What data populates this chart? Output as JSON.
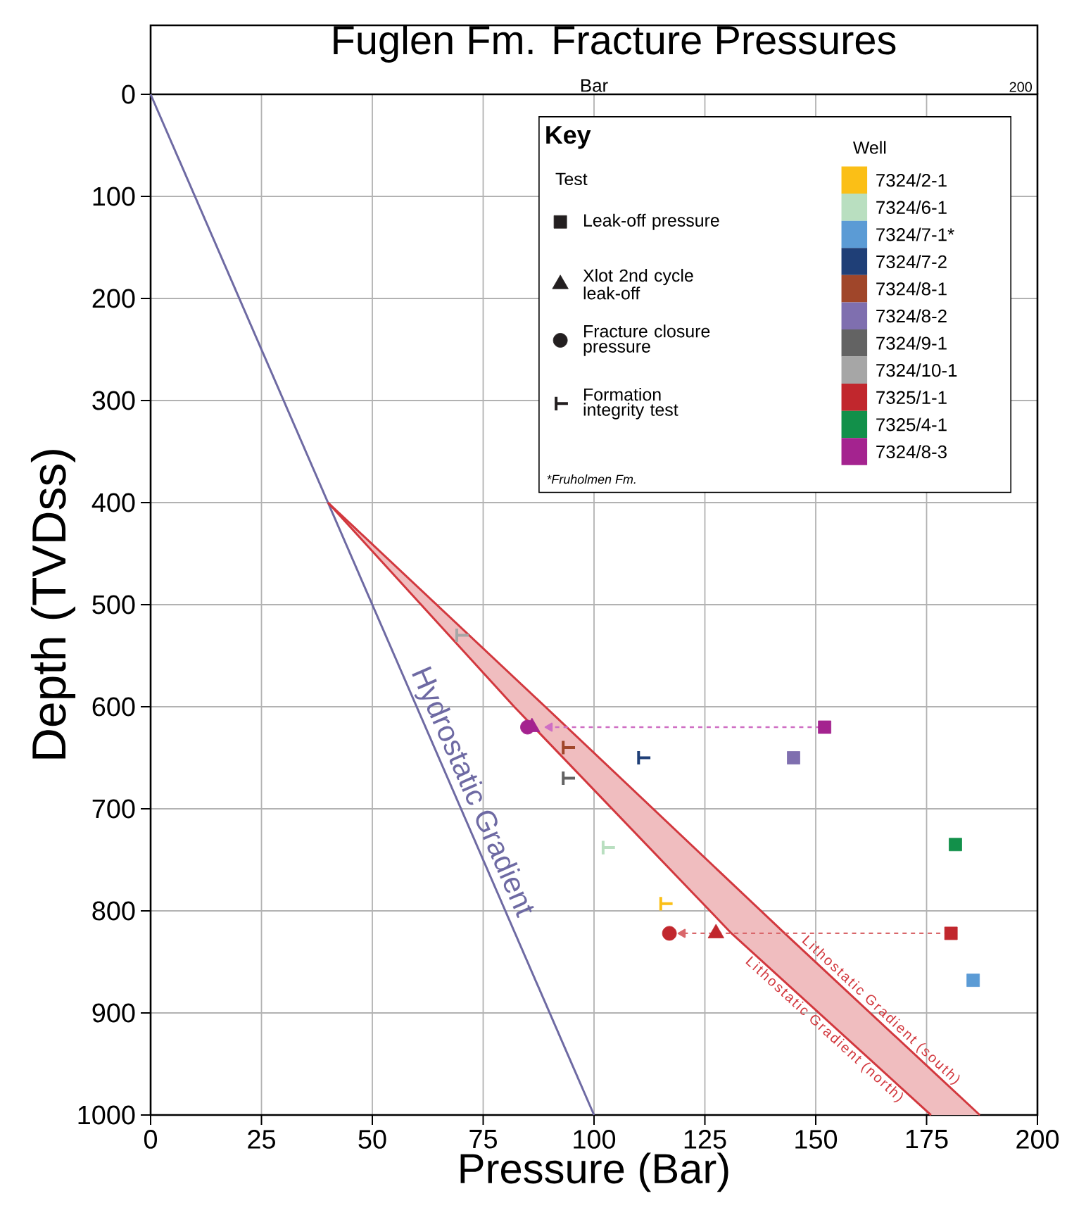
{
  "chart_data": {
    "type": "scatter",
    "title": "Fuglen Fm. Fracture Pressures",
    "xlabel": "Pressure (Bar)",
    "ylabel": "Depth (TVDss)",
    "legend_title": "Key",
    "annotations": [
      "Test",
      "Well",
      "*Fruholmen Fm.",
      "Bar",
      "200"
    ],
    "xlim": [
      0,
      200
    ],
    "xticks": [
      0,
      25,
      50,
      75,
      100,
      125,
      150,
      175,
      200
    ],
    "ylim": [
      1000,
      0
    ],
    "yticks": [
      0,
      100,
      200,
      300,
      400,
      500,
      600,
      700,
      800,
      900,
      1000
    ],
    "grid": true,
    "legend": "top right",
    "series": [
      {
        "type": "line",
        "name": "Hydrostatic Gradient",
        "color": "#6e6aa3",
        "x": [
          0,
          100
        ],
        "values": [
          0,
          1000
        ]
      },
      {
        "type": "line",
        "name": "Lithostatic Gradient (north)",
        "color": "#d2383e",
        "x": [
          40,
          82,
          131,
          176
        ],
        "values": [
          400,
          600,
          822,
          1000
        ]
      },
      {
        "type": "line",
        "name": "Lithostatic Gradient (south)",
        "color": "#d2383e",
        "x": [
          40,
          89,
          143,
          187
        ],
        "values": [
          400,
          600,
          822,
          1000
        ]
      },
      {
        "type": "line",
        "color": "#cf6fc4",
        "line_style": "dashed",
        "x": [
          151,
          90
        ],
        "values": [
          620,
          620
        ]
      },
      {
        "type": "line",
        "color": "#d9676b",
        "line_style": "dashed",
        "x": [
          180,
          120
        ],
        "values": [
          822,
          822
        ]
      },
      {
        "type": "scatter",
        "name": "Leak-off pressure",
        "marker": "square",
        "color": "#231f20"
      },
      {
        "type": "scatter",
        "name": "Xlot 2nd cycle leak-off",
        "marker": "triangle",
        "color": "#231f20"
      },
      {
        "type": "scatter",
        "name": "Fracture closure pressure",
        "marker": "circle",
        "color": "#231f20"
      },
      {
        "type": "scatter",
        "name": "Formation integrity test",
        "marker": "cross",
        "color": "#231f20"
      },
      {
        "type": "scatter",
        "name": "7324/2-1",
        "color": "#fbbf16"
      },
      {
        "type": "scatter",
        "name": "7324/6-1",
        "color": "#b9dfc0"
      },
      {
        "type": "scatter",
        "name": "7324/7-1*",
        "color": "#5b9bd5"
      },
      {
        "type": "scatter",
        "name": "7324/7-2",
        "color": "#1f3f77"
      },
      {
        "type": "scatter",
        "name": "7324/8-1",
        "color": "#a0462a"
      },
      {
        "type": "scatter",
        "name": "7324/8-2",
        "color": "#7f6faf"
      },
      {
        "type": "scatter",
        "name": "7324/9-1",
        "color": "#636363"
      },
      {
        "type": "scatter",
        "name": "7324/10-1",
        "color": "#a6a6a6"
      },
      {
        "type": "scatter",
        "name": "7325/1-1",
        "color": "#c1272d"
      },
      {
        "type": "scatter",
        "name": "7325/4-1",
        "color": "#12904a"
      },
      {
        "type": "scatter",
        "name": "7324/8-3",
        "color": "#a4238f"
      },
      {
        "type": "scatter",
        "marker": "cross",
        "color": "#fbbf16",
        "x": [
          116
        ],
        "values": [
          793
        ]
      },
      {
        "type": "scatter",
        "marker": "cross",
        "color": "#b9dfc0",
        "x": [
          103
        ],
        "values": [
          738
        ]
      },
      {
        "type": "scatter",
        "marker": "square",
        "color": "#5b9bd5",
        "x": [
          185.5
        ],
        "values": [
          868
        ]
      },
      {
        "type": "scatter",
        "marker": "cross",
        "color": "#1f3f77",
        "x": [
          111
        ],
        "values": [
          650
        ]
      },
      {
        "type": "scatter",
        "marker": "cross",
        "color": "#a0462a",
        "x": [
          94
        ],
        "values": [
          640
        ]
      },
      {
        "type": "scatter",
        "marker": "square",
        "color": "#7f6faf",
        "x": [
          145
        ],
        "values": [
          650
        ]
      },
      {
        "type": "scatter",
        "marker": "cross",
        "color": "#636363",
        "x": [
          94
        ],
        "values": [
          670
        ]
      },
      {
        "type": "scatter",
        "marker": "cross",
        "color": "#a6a6a6",
        "x": [
          70
        ],
        "values": [
          530
        ]
      },
      {
        "type": "scatter",
        "marker": "square",
        "color": "#c1272d",
        "x": [
          180.5
        ],
        "values": [
          822
        ]
      },
      {
        "type": "scatter",
        "marker": "triangle",
        "color": "#c1272d",
        "x": [
          127.5
        ],
        "values": [
          822
        ]
      },
      {
        "type": "scatter",
        "marker": "circle",
        "color": "#c1272d",
        "x": [
          117
        ],
        "values": [
          822
        ]
      },
      {
        "type": "scatter",
        "marker": "square",
        "color": "#12904a",
        "x": [
          181.5
        ],
        "values": [
          735
        ]
      },
      {
        "type": "scatter",
        "marker": "square",
        "color": "#a4238f",
        "x": [
          152
        ],
        "values": [
          620
        ]
      },
      {
        "type": "scatter",
        "marker": "circle",
        "color": "#a4238f",
        "x": [
          85
        ],
        "values": [
          620
        ]
      },
      {
        "type": "scatter",
        "marker": "triangle",
        "color": "#a4238f",
        "x": [
          86
        ],
        "values": [
          620
        ]
      }
    ]
  }
}
